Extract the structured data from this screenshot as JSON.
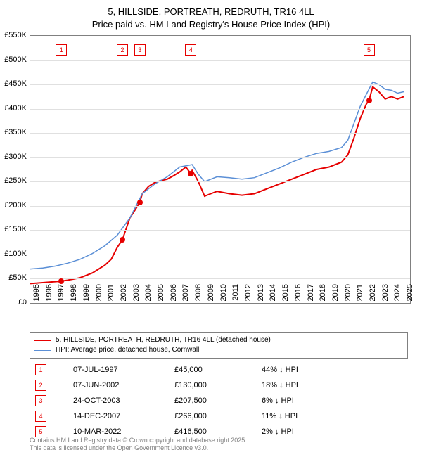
{
  "title_line1": "5, HILLSIDE, PORTREATH, REDRUTH, TR16 4LL",
  "title_line2": "Price paid vs. HM Land Registry's House Price Index (HPI)",
  "chart": {
    "type": "line",
    "background_color": "#ffffff",
    "grid_color": "#e0e0e0",
    "border_color": "#808080",
    "title_fontsize": 13,
    "label_fontsize": 11,
    "x_years": [
      1995,
      1996,
      1997,
      1998,
      1999,
      2000,
      2001,
      2002,
      2003,
      2004,
      2005,
      2006,
      2007,
      2008,
      2009,
      2010,
      2011,
      2012,
      2013,
      2014,
      2015,
      2016,
      2017,
      2018,
      2019,
      2020,
      2021,
      2022,
      2023,
      2024,
      2025
    ],
    "y_ticks": [
      0,
      50000,
      100000,
      150000,
      200000,
      250000,
      300000,
      350000,
      400000,
      450000,
      500000,
      550000
    ],
    "y_tick_labels": [
      "£0",
      "£50K",
      "£100K",
      "£150K",
      "£200K",
      "£250K",
      "£300K",
      "£350K",
      "£400K",
      "£450K",
      "£500K",
      "£550K"
    ],
    "ylim": [
      0,
      550000
    ],
    "xlim": [
      1995,
      2025.5
    ],
    "series": [
      {
        "name": "property",
        "label": "5, HILLSIDE, PORTREATH, REDRUTH, TR16 4LL (detached house)",
        "color": "#e60000",
        "line_width": 2,
        "points": [
          [
            1995,
            40000
          ],
          [
            1996,
            42000
          ],
          [
            1997,
            44000
          ],
          [
            1997.5,
            45000
          ],
          [
            1998,
            47000
          ],
          [
            1999,
            52000
          ],
          [
            2000,
            62000
          ],
          [
            2001,
            78000
          ],
          [
            2001.5,
            90000
          ],
          [
            2002,
            115000
          ],
          [
            2002.4,
            130000
          ],
          [
            2003,
            175000
          ],
          [
            2003.5,
            195000
          ],
          [
            2003.8,
            207500
          ],
          [
            2004,
            225000
          ],
          [
            2004.5,
            240000
          ],
          [
            2005,
            248000
          ],
          [
            2005.5,
            252000
          ],
          [
            2006,
            255000
          ],
          [
            2006.5,
            262000
          ],
          [
            2007,
            270000
          ],
          [
            2007.5,
            280000
          ],
          [
            2007.9,
            266000
          ],
          [
            2008,
            273000
          ],
          [
            2008.5,
            250000
          ],
          [
            2009,
            220000
          ],
          [
            2009.5,
            225000
          ],
          [
            2010,
            230000
          ],
          [
            2011,
            225000
          ],
          [
            2012,
            222000
          ],
          [
            2013,
            225000
          ],
          [
            2014,
            235000
          ],
          [
            2015,
            245000
          ],
          [
            2016,
            255000
          ],
          [
            2017,
            265000
          ],
          [
            2018,
            275000
          ],
          [
            2019,
            280000
          ],
          [
            2020,
            290000
          ],
          [
            2020.5,
            305000
          ],
          [
            2021,
            340000
          ],
          [
            2021.5,
            380000
          ],
          [
            2022,
            410000
          ],
          [
            2022.2,
            416500
          ],
          [
            2022.5,
            445000
          ],
          [
            2023,
            435000
          ],
          [
            2023.5,
            420000
          ],
          [
            2024,
            425000
          ],
          [
            2024.5,
            420000
          ],
          [
            2025,
            425000
          ]
        ]
      },
      {
        "name": "hpi",
        "label": "HPI: Average price, detached house, Cornwall",
        "color": "#5b8fd6",
        "line_width": 1.5,
        "points": [
          [
            1995,
            70000
          ],
          [
            1996,
            72000
          ],
          [
            1997,
            76000
          ],
          [
            1998,
            82000
          ],
          [
            1999,
            90000
          ],
          [
            2000,
            102000
          ],
          [
            2001,
            118000
          ],
          [
            2002,
            140000
          ],
          [
            2003,
            175000
          ],
          [
            2004,
            225000
          ],
          [
            2005,
            245000
          ],
          [
            2006,
            260000
          ],
          [
            2007,
            280000
          ],
          [
            2008,
            285000
          ],
          [
            2008.5,
            265000
          ],
          [
            2009,
            250000
          ],
          [
            2010,
            260000
          ],
          [
            2011,
            258000
          ],
          [
            2012,
            255000
          ],
          [
            2013,
            258000
          ],
          [
            2014,
            268000
          ],
          [
            2015,
            278000
          ],
          [
            2016,
            290000
          ],
          [
            2017,
            300000
          ],
          [
            2018,
            308000
          ],
          [
            2019,
            312000
          ],
          [
            2020,
            320000
          ],
          [
            2020.5,
            335000
          ],
          [
            2021,
            370000
          ],
          [
            2021.5,
            405000
          ],
          [
            2022,
            430000
          ],
          [
            2022.5,
            455000
          ],
          [
            2023,
            450000
          ],
          [
            2023.5,
            440000
          ],
          [
            2024,
            438000
          ],
          [
            2024.5,
            432000
          ],
          [
            2025,
            435000
          ]
        ]
      }
    ],
    "markers": [
      {
        "n": "1",
        "year": 1997.5,
        "color": "#e60000"
      },
      {
        "n": "2",
        "year": 2002.4,
        "color": "#e60000"
      },
      {
        "n": "3",
        "year": 2003.8,
        "color": "#e60000"
      },
      {
        "n": "4",
        "year": 2007.9,
        "color": "#e60000"
      },
      {
        "n": "5",
        "year": 2022.2,
        "color": "#e60000"
      }
    ],
    "sales": [
      {
        "year": 1997.5,
        "price": 45000
      },
      {
        "year": 2002.4,
        "price": 130000
      },
      {
        "year": 2003.8,
        "price": 207500
      },
      {
        "year": 2007.9,
        "price": 266000
      },
      {
        "year": 2022.2,
        "price": 416500
      }
    ]
  },
  "table": {
    "rows": [
      {
        "n": "1",
        "date": "07-JUL-1997",
        "price": "£45,000",
        "delta": "44% ↓ HPI"
      },
      {
        "n": "2",
        "date": "07-JUN-2002",
        "price": "£130,000",
        "delta": "18% ↓ HPI"
      },
      {
        "n": "3",
        "date": "24-OCT-2003",
        "price": "£207,500",
        "delta": "6% ↓ HPI"
      },
      {
        "n": "4",
        "date": "14-DEC-2007",
        "price": "£266,000",
        "delta": "11% ↓ HPI"
      },
      {
        "n": "5",
        "date": "10-MAR-2022",
        "price": "£416,500",
        "delta": "2% ↓ HPI"
      }
    ],
    "marker_color": "#e60000"
  },
  "footer_line1": "Contains HM Land Registry data © Crown copyright and database right 2025.",
  "footer_line2": "This data is licensed under the Open Government Licence v3.0."
}
